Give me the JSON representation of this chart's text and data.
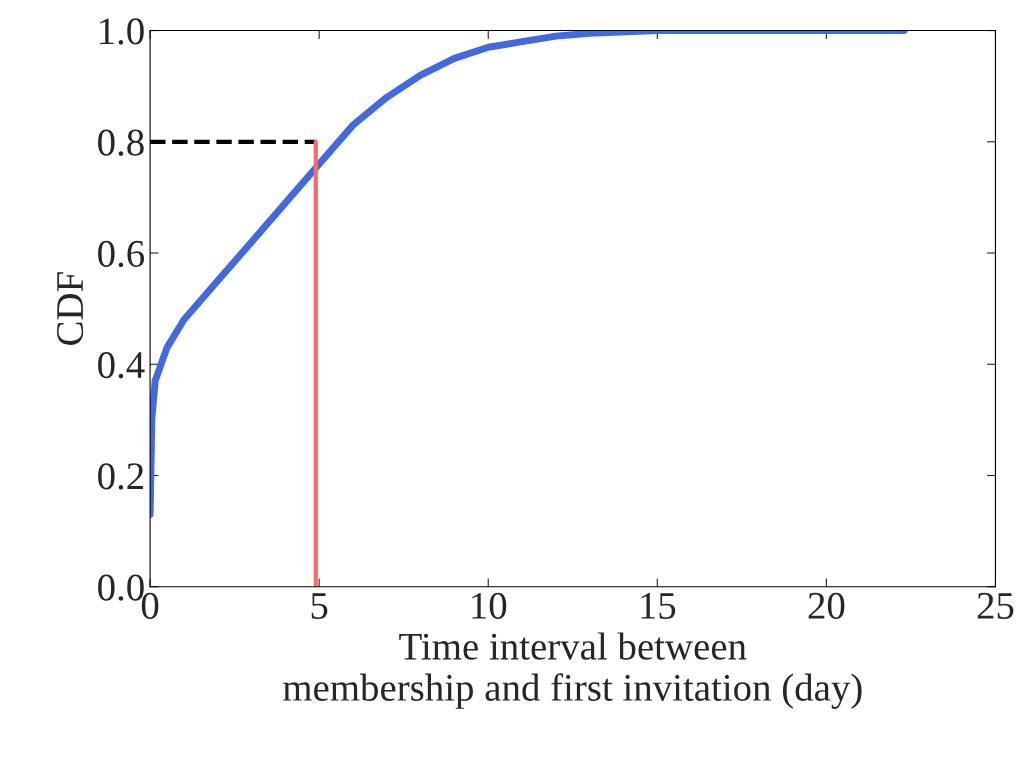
{
  "chart_data": {
    "type": "line",
    "xlabel": "Time interval between\nmembership and first invitation (day)",
    "ylabel": "CDF",
    "x": [
      0,
      0.05,
      0.15,
      0.5,
      1,
      2,
      3,
      4,
      5,
      6,
      7,
      8,
      9,
      10,
      11,
      12,
      13,
      15,
      22.3
    ],
    "series": [
      {
        "color": "#4169e1",
        "values": [
          0.13,
          0.3,
          0.37,
          0.43,
          0.48,
          0.55,
          0.62,
          0.69,
          0.76,
          0.83,
          0.88,
          0.92,
          0.95,
          0.97,
          0.98,
          0.99,
          0.995,
          1.0,
          1.0
        ]
      }
    ],
    "xlim": [
      0,
      25
    ],
    "xticks": [
      0,
      5,
      10,
      15,
      20,
      25
    ],
    "ylim": [
      0,
      1.0
    ],
    "yticks": [
      {
        "value": 0,
        "label": "0.0"
      },
      {
        "value": 0.2,
        "label": "0.2"
      },
      {
        "value": 0.4,
        "label": "0.4"
      },
      {
        "value": 0.6,
        "label": "0.6"
      },
      {
        "value": 0.8,
        "label": "0.8"
      },
      {
        "value": 1.0,
        "label": "1.0"
      }
    ],
    "ref_lines": [
      {
        "axis": "y",
        "value": 0.8,
        "color": "#000000",
        "line_style": "dashed"
      },
      {
        "axis": "x",
        "value": 4.9,
        "color": "#ff6666",
        "line_style": "solid"
      }
    ],
    "grid": false,
    "legend": false,
    "marker": "none",
    "line_style": "solid"
  }
}
